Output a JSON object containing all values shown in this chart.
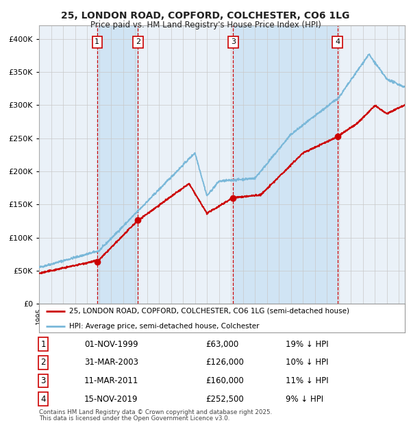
{
  "title": "25, LONDON ROAD, COPFORD, COLCHESTER, CO6 1LG",
  "subtitle": "Price paid vs. HM Land Registry's House Price Index (HPI)",
  "sale_dates_num": [
    1999.83,
    2003.25,
    2011.19,
    2019.88
  ],
  "sale_prices": [
    63000,
    126000,
    160000,
    252500
  ],
  "sale_labels": [
    "1",
    "2",
    "3",
    "4"
  ],
  "legend_line1": "25, LONDON ROAD, COPFORD, COLCHESTER, CO6 1LG (semi-detached house)",
  "legend_line2": "HPI: Average price, semi-detached house, Colchester",
  "table_rows": [
    [
      "1",
      "01-NOV-1999",
      "£63,000",
      "19% ↓ HPI"
    ],
    [
      "2",
      "31-MAR-2003",
      "£126,000",
      "10% ↓ HPI"
    ],
    [
      "3",
      "11-MAR-2011",
      "£160,000",
      "11% ↓ HPI"
    ],
    [
      "4",
      "15-NOV-2019",
      "£252,500",
      "9% ↓ HPI"
    ]
  ],
  "footnote1": "Contains HM Land Registry data © Crown copyright and database right 2025.",
  "footnote2": "This data is licensed under the Open Government Licence v3.0.",
  "hpi_color": "#7ab8d9",
  "price_color": "#cc0000",
  "bg_color": "#ffffff",
  "plot_bg_color": "#eaf1f8",
  "shade_color": "#d0e4f4",
  "grid_color": "#c8c8c8",
  "vline_color": "#cc0000",
  "ylim": [
    0,
    420000
  ],
  "yticks": [
    0,
    50000,
    100000,
    150000,
    200000,
    250000,
    300000,
    350000,
    400000
  ],
  "xmin": 1995.0,
  "xmax": 2025.5
}
